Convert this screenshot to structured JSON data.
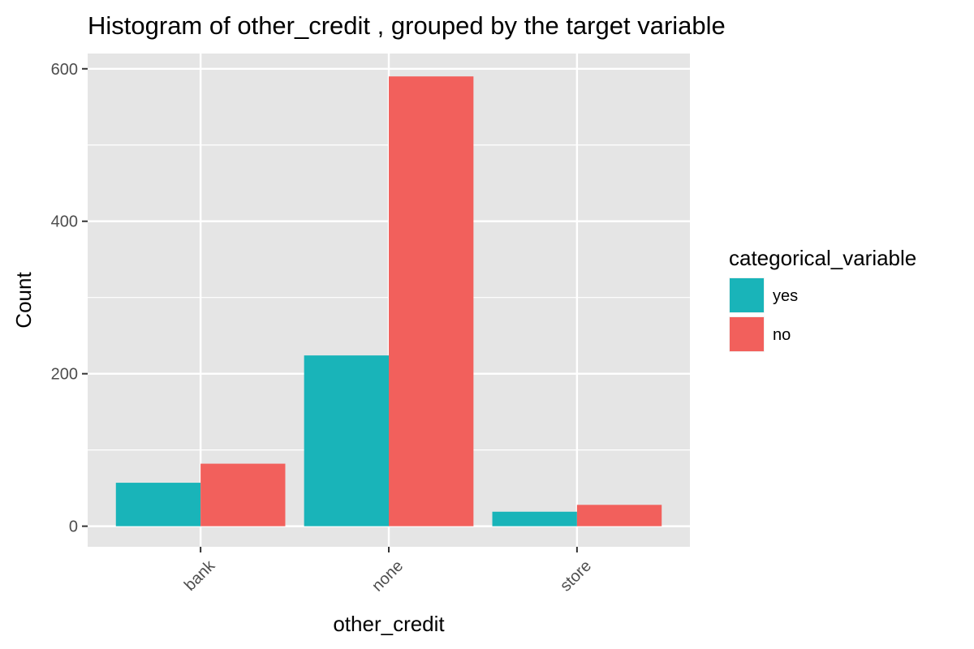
{
  "chart_data": {
    "type": "bar",
    "title": "Histogram of other_credit , grouped by the target variable",
    "xlabel": "other_credit",
    "ylabel": "Count",
    "categories": [
      "bank",
      "none",
      "store"
    ],
    "series": [
      {
        "name": "yes",
        "values": [
          57,
          224,
          19
        ],
        "color": "#19B4B9"
      },
      {
        "name": "no",
        "values": [
          82,
          590,
          28
        ],
        "color": "#F2605C"
      }
    ],
    "ylim": [
      -27,
      620
    ],
    "yticks": [
      0,
      200,
      400,
      600
    ],
    "grid": true,
    "legend": {
      "title": "categorical_variable",
      "position": "right"
    },
    "colors": {
      "panel_background": "#E5E5E5",
      "grid_line": "#FFFFFF",
      "yes": "#19B4B9",
      "no": "#F2605C"
    }
  }
}
